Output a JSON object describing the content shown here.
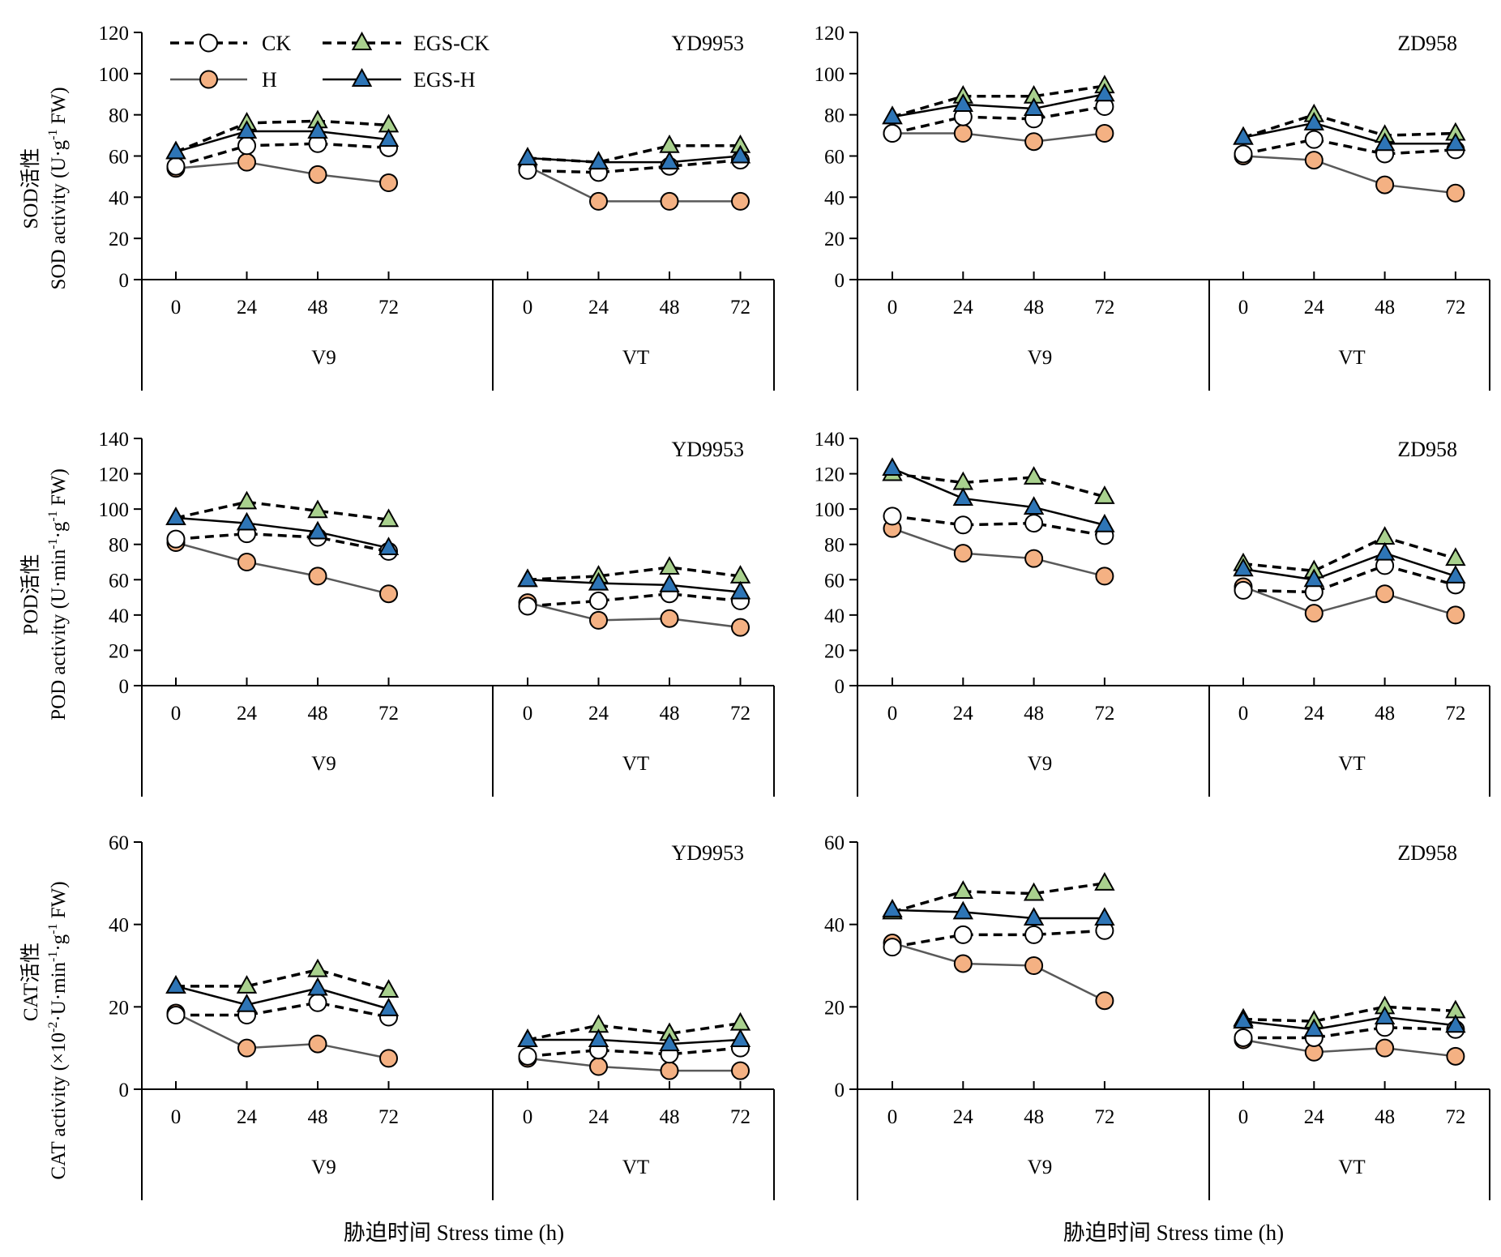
{
  "x_title": "胁迫时间 Stress time (h)",
  "legend": [
    {
      "key": "CK",
      "label": "CK"
    },
    {
      "key": "EGS-CK",
      "label": "EGS-CK"
    },
    {
      "key": "H",
      "label": "H"
    },
    {
      "key": "EGS-H",
      "label": "EGS-H"
    }
  ],
  "series_styles": {
    "CK": {
      "fill": "#ffffff",
      "dash": true,
      "marker": "circle",
      "line": "#000000"
    },
    "EGS-CK": {
      "fill": "#a9d18e",
      "dash": true,
      "marker": "triangle",
      "line": "#000000"
    },
    "H": {
      "fill": "#f4b183",
      "dash": false,
      "marker": "circle",
      "line": "#595959"
    },
    "EGS-H": {
      "fill": "#2e75b6",
      "dash": false,
      "marker": "triangle",
      "line": "#000000"
    }
  },
  "rows": [
    {
      "key": "SOD",
      "ylabel_cn": "SOD活性",
      "ylabel_en": "SOD activity (U·g",
      "ylabel_sup": "-1",
      "ylabel_tail": " FW)",
      "ylim": [
        0,
        120
      ],
      "yticks": [
        "0",
        "20",
        "40",
        "60",
        "80",
        "100",
        "120"
      ]
    },
    {
      "key": "POD",
      "ylabel_cn": "POD活性",
      "ylabel_en": "POD activity (U·min",
      "ylabel_sup": "-1",
      "ylabel_mid": "·g",
      "ylabel_sup2": "-1",
      "ylabel_tail": " FW)",
      "ylim": [
        0,
        140
      ],
      "yticks": [
        "0",
        "20",
        "40",
        "60",
        "80",
        "100",
        "120",
        "140"
      ]
    },
    {
      "key": "CAT",
      "ylabel_cn": "CAT活性",
      "ylabel_en": "CAT activity (×10",
      "ylabel_sup": "-2",
      "ylabel_mid": "·U·min",
      "ylabel_sup2": "-1",
      "ylabel_mid2": "·g",
      "ylabel_sup3": "-1",
      "ylabel_tail": " FW)",
      "ylim": [
        0,
        60
      ],
      "yticks": [
        "0",
        "20",
        "40",
        "60"
      ]
    }
  ],
  "stage_labels": [
    "V9",
    "VT"
  ],
  "time_ticks": [
    "0",
    "24",
    "48",
    "72"
  ],
  "chart_data": [
    {
      "type": "line",
      "variety": "YD9953",
      "measure": "SOD",
      "ylim": [
        0,
        120
      ],
      "series": [
        {
          "name": "CK",
          "V9": [
            55,
            65,
            66,
            64
          ],
          "VT": [
            53,
            52,
            55,
            58
          ]
        },
        {
          "name": "EGS-CK",
          "V9": [
            62,
            76,
            77,
            75
          ],
          "VT": [
            59,
            57,
            65,
            65
          ]
        },
        {
          "name": "H",
          "V9": [
            54,
            57,
            51,
            47
          ],
          "VT": [
            55,
            38,
            38,
            38
          ]
        },
        {
          "name": "EGS-H",
          "V9": [
            62,
            72,
            72,
            68
          ],
          "VT": [
            59,
            57,
            57,
            60
          ]
        }
      ]
    },
    {
      "type": "line",
      "variety": "ZD958",
      "measure": "SOD",
      "ylim": [
        0,
        120
      ],
      "series": [
        {
          "name": "CK",
          "V9": [
            71,
            79,
            78,
            84
          ],
          "VT": [
            61,
            68,
            61,
            63
          ]
        },
        {
          "name": "EGS-CK",
          "V9": [
            79,
            89,
            89,
            94
          ],
          "VT": [
            69,
            80,
            70,
            71
          ]
        },
        {
          "name": "H",
          "V9": [
            71,
            71,
            67,
            71
          ],
          "VT": [
            60,
            58,
            46,
            42
          ]
        },
        {
          "name": "EGS-H",
          "V9": [
            79,
            85,
            83,
            90
          ],
          "VT": [
            69,
            76,
            66,
            66
          ]
        }
      ]
    },
    {
      "type": "line",
      "variety": "YD9953",
      "measure": "POD",
      "ylim": [
        0,
        140
      ],
      "series": [
        {
          "name": "CK",
          "V9": [
            83,
            86,
            84,
            76
          ],
          "VT": [
            45,
            48,
            52,
            48
          ]
        },
        {
          "name": "EGS-CK",
          "V9": [
            95,
            104,
            99,
            94
          ],
          "VT": [
            60,
            62,
            67,
            62
          ]
        },
        {
          "name": "H",
          "V9": [
            81,
            70,
            62,
            52
          ],
          "VT": [
            47,
            37,
            38,
            33
          ]
        },
        {
          "name": "EGS-H",
          "V9": [
            95,
            92,
            87,
            78
          ],
          "VT": [
            60,
            58,
            57,
            53
          ]
        }
      ]
    },
    {
      "type": "line",
      "variety": "ZD958",
      "measure": "POD",
      "ylim": [
        0,
        140
      ],
      "series": [
        {
          "name": "CK",
          "V9": [
            96,
            91,
            92,
            85
          ],
          "VT": [
            54,
            53,
            68,
            57
          ]
        },
        {
          "name": "EGS-CK",
          "V9": [
            120,
            115,
            118,
            107
          ],
          "VT": [
            69,
            65,
            84,
            72
          ]
        },
        {
          "name": "H",
          "V9": [
            89,
            75,
            72,
            62
          ],
          "VT": [
            56,
            41,
            52,
            40
          ]
        },
        {
          "name": "EGS-H",
          "V9": [
            123,
            106,
            101,
            91
          ],
          "VT": [
            66,
            60,
            75,
            62
          ]
        }
      ]
    },
    {
      "type": "line",
      "variety": "YD9953",
      "measure": "CAT",
      "ylim": [
        0,
        60
      ],
      "series": [
        {
          "name": "CK",
          "V9": [
            18,
            18,
            21,
            17.5
          ],
          "VT": [
            8,
            9.5,
            8.5,
            10
          ]
        },
        {
          "name": "EGS-CK",
          "V9": [
            25,
            25,
            29,
            24
          ],
          "VT": [
            12,
            15.5,
            13.5,
            16
          ]
        },
        {
          "name": "H",
          "V9": [
            18.5,
            10,
            11,
            7.5
          ],
          "VT": [
            7.5,
            5.5,
            4.5,
            4.5
          ]
        },
        {
          "name": "EGS-H",
          "V9": [
            25,
            20.5,
            24.5,
            19.5
          ],
          "VT": [
            12,
            12,
            11,
            12
          ]
        }
      ]
    },
    {
      "type": "line",
      "variety": "ZD958",
      "measure": "CAT",
      "ylim": [
        0,
        60
      ],
      "series": [
        {
          "name": "CK",
          "V9": [
            34.5,
            37.5,
            37.5,
            38.5
          ],
          "VT": [
            12.5,
            12.5,
            15,
            14.5
          ]
        },
        {
          "name": "EGS-CK",
          "V9": [
            43,
            48,
            47.5,
            50
          ],
          "VT": [
            17,
            16.5,
            20,
            19
          ]
        },
        {
          "name": "H",
          "V9": [
            35.5,
            30.5,
            30,
            21.5
          ],
          "VT": [
            12,
            9,
            10,
            8
          ]
        },
        {
          "name": "EGS-H",
          "V9": [
            43.5,
            43,
            41.5,
            41.5
          ],
          "VT": [
            16.5,
            14.5,
            17.5,
            15.5
          ]
        }
      ]
    }
  ]
}
